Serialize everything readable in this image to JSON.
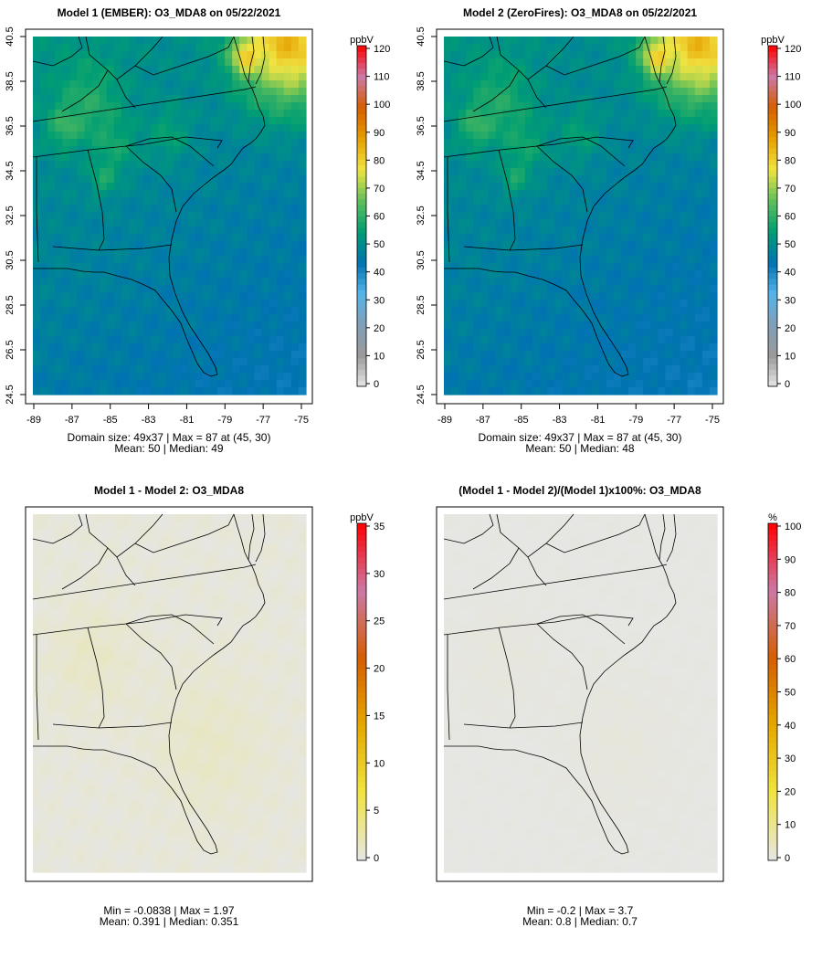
{
  "palette": [
    "#e6e6e6",
    "#9a9a9a",
    "#7f9fb8",
    "#56b4e9",
    "#0072b2",
    "#009e73",
    "#5fbf5a",
    "#f0e442",
    "#e69f00",
    "#d55e00",
    "#cc79a7",
    "#ff0000"
  ],
  "panels": [
    {
      "id": "model1",
      "title": "Model 1 (EMBER): O3_MDA8 on 05/22/2021",
      "unit": "ppbV",
      "scale_max": 120,
      "colorbar_ticks": [
        "0",
        "10",
        "20",
        "30",
        "40",
        "50",
        "60",
        "70",
        "80",
        "90",
        "100",
        "110",
        "120"
      ],
      "x_ticks": [
        "-89",
        "-87",
        "-85",
        "-83",
        "-81",
        "-79",
        "-77",
        "-75"
      ],
      "y_ticks": [
        "24.5",
        "26.5",
        "28.5",
        "30.5",
        "32.5",
        "34.5",
        "36.5",
        "38.5",
        "40.5"
      ],
      "stats_line1": "Domain size: 49x37 | Max = 87 at (45, 30)",
      "stats_line2": "Mean: 50 |  Median: 49",
      "field": "absolute",
      "nudge": 0
    },
    {
      "id": "model2",
      "title": "Model 2 (ZeroFires): O3_MDA8 on 05/22/2021",
      "unit": "ppbV",
      "scale_max": 120,
      "colorbar_ticks": [
        "0",
        "10",
        "20",
        "30",
        "40",
        "50",
        "60",
        "70",
        "80",
        "90",
        "100",
        "110",
        "120"
      ],
      "x_ticks": [
        "-89",
        "-87",
        "-85",
        "-83",
        "-81",
        "-79",
        "-77",
        "-75"
      ],
      "y_ticks": [
        "24.5",
        "26.5",
        "28.5",
        "30.5",
        "32.5",
        "34.5",
        "36.5",
        "38.5",
        "40.5"
      ],
      "stats_line1": "Domain size: 49x37 | Max = 87 at (45, 30)",
      "stats_line2": "Mean: 50 |  Median: 48",
      "field": "absolute",
      "nudge": -0.4
    },
    {
      "id": "diff",
      "title": "Model 1 - Model 2: O3_MDA8",
      "unit": "ppbV",
      "scale_max": 35,
      "colorbar_ticks": [
        "0",
        "5",
        "10",
        "15",
        "20",
        "25",
        "30",
        "35"
      ],
      "x_ticks": [],
      "y_ticks": [],
      "stats_line1": "Min = -0.0838 | Max = 1.97",
      "stats_line2": "Mean: 0.391 |  Median: 0.351",
      "field": "diff",
      "nudge": 0
    },
    {
      "id": "pctdiff",
      "title": "(Model 1 - Model 2)/(Model 1)x100%: O3_MDA8",
      "unit": "%",
      "scale_max": 100,
      "colorbar_ticks": [
        "0",
        "10",
        "20",
        "30",
        "40",
        "50",
        "60",
        "70",
        "80",
        "90",
        "100"
      ],
      "x_ticks": [],
      "y_ticks": [],
      "stats_line1": "Min = -0.2 | Max = 3.7",
      "stats_line2": "Mean: 0.8 |  Median: 0.7",
      "field": "pct",
      "nudge": 0
    }
  ]
}
